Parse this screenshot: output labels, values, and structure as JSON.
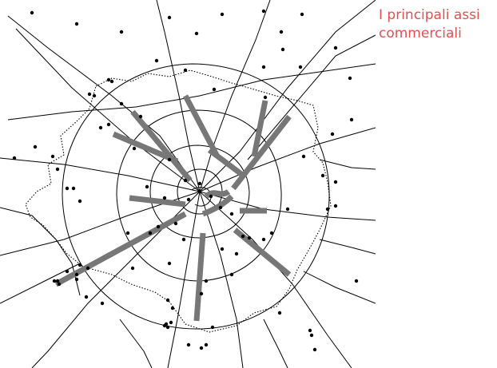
{
  "title": {
    "line1": "I principali assi",
    "line2": "commerciali"
  },
  "colors": {
    "title": "#e0504f",
    "roads": "#000000",
    "boundary": "#000000",
    "axes": "#7a7a7a",
    "points": "#000000"
  }
}
